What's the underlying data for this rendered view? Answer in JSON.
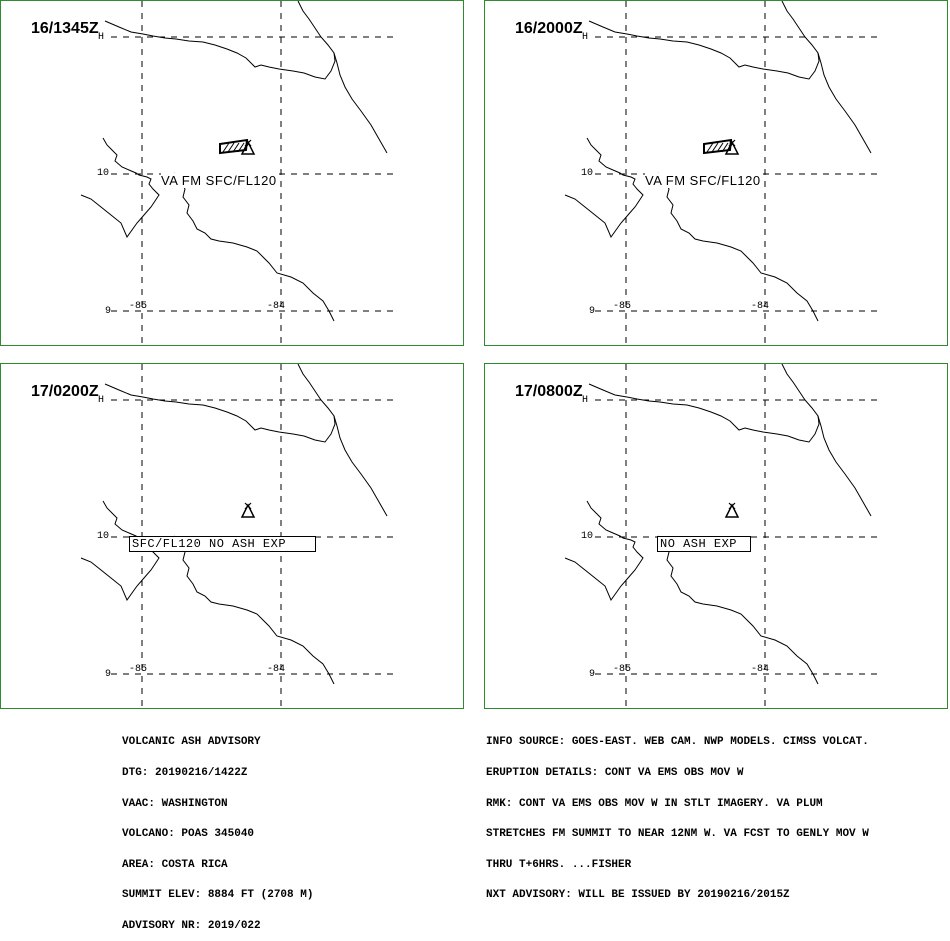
{
  "panels": [
    {
      "time": "16/1345Z",
      "time_marker": "H",
      "label": "VA FM SFC/FL120",
      "label_style": "plain",
      "polygon": true
    },
    {
      "time": "16/2000Z",
      "time_marker": "H",
      "label": "VA FM SFC/FL120",
      "label_style": "plain",
      "polygon": true
    },
    {
      "time": "17/0200Z",
      "time_marker": "H",
      "label": "SFC/FL120 NO ASH EXP",
      "label_style": "boxed",
      "polygon": false
    },
    {
      "time": "17/0800Z",
      "time_marker": "H",
      "label": "NO ASH EXP",
      "label_style": "boxed",
      "polygon": false
    }
  ],
  "grid": {
    "lat_labels": [
      "10",
      "9"
    ],
    "lon_labels": [
      "-85",
      "-84"
    ]
  },
  "advisory_left": [
    "VOLCANIC ASH ADVISORY",
    "DTG: 20190216/1422Z",
    "VAAC: WASHINGTON",
    "VOLCANO: POAS 345040",
    "AREA: COSTA RICA",
    "SUMMIT ELEV: 8884 FT (2708 M)",
    "ADVISORY NR: 2019/022"
  ],
  "advisory_right": [
    "INFO SOURCE: GOES-EAST. WEB CAM. NWP MODELS. CIMSS VOLCAT.",
    "ERUPTION DETAILS: CONT VA EMS OBS MOV W",
    "RMK: CONT VA EMS OBS MOV W IN STLT IMAGERY. VA PLUM",
    "STRETCHES FM SUMMIT TO NEAR 12NM W. VA FCST TO GENLY MOV W",
    "THRU T+6HRS. ...FISHER",
    "NXT ADVISORY: WILL BE ISSUED BY 20190216/2015Z"
  ],
  "colors": {
    "panel_border": "#2e8b2e",
    "lines": "#000000"
  },
  "icons": {
    "volcano": "volcano-triangle-icon"
  }
}
